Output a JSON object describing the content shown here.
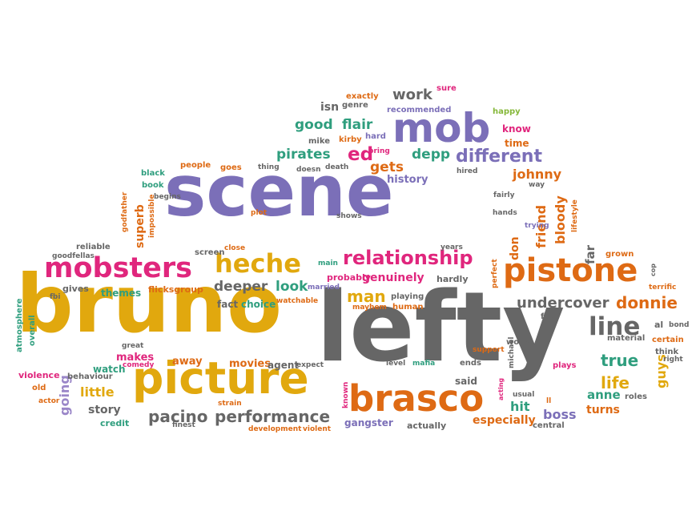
{
  "palette": {
    "purple": "#7b6fb8",
    "yellow": "#e1a80e",
    "pink": "#e0267d",
    "orange": "#de6a14",
    "gray": "#666666",
    "teal": "#2f9e7e",
    "lightgreen": "#86b83a",
    "lavender": "#9a86c8"
  },
  "words": [
    {
      "text": "lefty",
      "color": "gray"
    },
    {
      "text": "bruno",
      "color": "yellow"
    },
    {
      "text": "scene",
      "color": "purple"
    },
    {
      "text": "picture",
      "color": "yellow"
    },
    {
      "text": "brasco",
      "color": "orange"
    },
    {
      "text": "pistone",
      "color": "orange"
    },
    {
      "text": "mob",
      "color": "purple"
    },
    {
      "text": "mobsters",
      "color": "pink"
    },
    {
      "text": "heche",
      "color": "yellow"
    },
    {
      "text": "relationship",
      "color": "pink"
    },
    {
      "text": "line",
      "color": "gray"
    },
    {
      "text": "undercover",
      "color": "gray"
    },
    {
      "text": "donnie",
      "color": "orange"
    },
    {
      "text": "performance",
      "color": "gray"
    },
    {
      "text": "pacino",
      "color": "gray"
    },
    {
      "text": "different",
      "color": "purple"
    },
    {
      "text": "true",
      "color": "teal"
    },
    {
      "text": "life",
      "color": "yellow"
    },
    {
      "text": "work",
      "color": "gray"
    },
    {
      "text": "good",
      "color": "teal"
    },
    {
      "text": "flair",
      "color": "teal"
    },
    {
      "text": "depp",
      "color": "teal"
    },
    {
      "text": "pirates",
      "color": "teal"
    },
    {
      "text": "ed",
      "color": "pink"
    },
    {
      "text": "gets",
      "color": "orange"
    },
    {
      "text": "johnny",
      "color": "orange"
    },
    {
      "text": "friend",
      "color": "orange"
    },
    {
      "text": "bloody",
      "color": "orange"
    },
    {
      "text": "deeper",
      "color": "gray"
    },
    {
      "text": "look",
      "color": "teal"
    },
    {
      "text": "man",
      "color": "yellow"
    },
    {
      "text": "genuinely",
      "color": "pink"
    },
    {
      "text": "going",
      "color": "lavender"
    },
    {
      "text": "little",
      "color": "yellow"
    },
    {
      "text": "boss",
      "color": "purple"
    },
    {
      "text": "hit",
      "color": "teal"
    },
    {
      "text": "guys",
      "color": "yellow"
    },
    {
      "text": "anne",
      "color": "teal"
    },
    {
      "text": "turns",
      "color": "orange"
    },
    {
      "text": "especially",
      "color": "orange"
    },
    {
      "text": "superb",
      "color": "orange"
    },
    {
      "text": "story",
      "color": "gray"
    },
    {
      "text": "makes",
      "color": "pink"
    },
    {
      "text": "watch",
      "color": "teal"
    },
    {
      "text": "away",
      "color": "orange"
    },
    {
      "text": "movies",
      "color": "orange"
    },
    {
      "text": "agent",
      "color": "gray"
    },
    {
      "text": "themes",
      "color": "teal"
    },
    {
      "text": "gives",
      "color": "gray"
    },
    {
      "text": "choice",
      "color": "teal"
    },
    {
      "text": "fact",
      "color": "gray"
    },
    {
      "text": "gangster",
      "color": "purple"
    },
    {
      "text": "actually",
      "color": "gray"
    },
    {
      "text": "far",
      "color": "gray"
    },
    {
      "text": "don",
      "color": "orange"
    },
    {
      "text": "isn",
      "color": "gray"
    },
    {
      "text": "history",
      "color": "purple"
    },
    {
      "text": "know",
      "color": "pink"
    },
    {
      "text": "time",
      "color": "orange"
    },
    {
      "text": "happy",
      "color": "lightgreen"
    },
    {
      "text": "sure",
      "color": "pink"
    },
    {
      "text": "exactly",
      "color": "orange"
    },
    {
      "text": "recommended",
      "color": "purple"
    },
    {
      "text": "genre",
      "color": "gray"
    },
    {
      "text": "mike",
      "color": "gray"
    },
    {
      "text": "kirby",
      "color": "orange"
    },
    {
      "text": "hard",
      "color": "purple"
    },
    {
      "text": "bring",
      "color": "pink"
    },
    {
      "text": "hired",
      "color": "gray"
    },
    {
      "text": "doesn",
      "color": "gray"
    },
    {
      "text": "death",
      "color": "gray"
    },
    {
      "text": "thing",
      "color": "gray"
    },
    {
      "text": "goes",
      "color": "orange"
    },
    {
      "text": "people",
      "color": "orange"
    },
    {
      "text": "black",
      "color": "teal"
    },
    {
      "text": "book",
      "color": "teal"
    },
    {
      "text": "begins",
      "color": "gray"
    },
    {
      "text": "impossible",
      "color": "orange"
    },
    {
      "text": "godfather",
      "color": "orange"
    },
    {
      "text": "reliable",
      "color": "gray"
    },
    {
      "text": "goodfellas",
      "color": "gray"
    },
    {
      "text": "plot",
      "color": "orange"
    },
    {
      "text": "shows",
      "color": "gray"
    },
    {
      "text": "screen",
      "color": "gray"
    },
    {
      "text": "close",
      "color": "orange"
    },
    {
      "text": "main",
      "color": "teal"
    },
    {
      "text": "flicksgroup",
      "color": "orange"
    },
    {
      "text": "probably",
      "color": "pink"
    },
    {
      "text": "hardly",
      "color": "gray"
    },
    {
      "text": "playing",
      "color": "gray"
    },
    {
      "text": "human",
      "color": "orange"
    },
    {
      "text": "mayhem",
      "color": "orange"
    },
    {
      "text": "married",
      "color": "purple"
    },
    {
      "text": "watchable",
      "color": "orange"
    },
    {
      "text": "fbi",
      "color": "gray"
    },
    {
      "text": "atmosphere",
      "color": "teal"
    },
    {
      "text": "overall",
      "color": "teal"
    },
    {
      "text": "violence",
      "color": "pink"
    },
    {
      "text": "old",
      "color": "orange"
    },
    {
      "text": "actor",
      "color": "orange"
    },
    {
      "text": "behaviour",
      "color": "gray"
    },
    {
      "text": "great",
      "color": "gray"
    },
    {
      "text": "comedy",
      "color": "pink"
    },
    {
      "text": "credit",
      "color": "teal"
    },
    {
      "text": "finest",
      "color": "gray"
    },
    {
      "text": "strain",
      "color": "orange"
    },
    {
      "text": "development",
      "color": "orange"
    },
    {
      "text": "violent",
      "color": "orange"
    },
    {
      "text": "expect",
      "color": "gray"
    },
    {
      "text": "level",
      "color": "gray"
    },
    {
      "text": "mafia",
      "color": "teal"
    },
    {
      "text": "known",
      "color": "pink"
    },
    {
      "text": "said",
      "color": "gray"
    },
    {
      "text": "ends",
      "color": "gray"
    },
    {
      "text": "support",
      "color": "orange"
    },
    {
      "text": "michael",
      "color": "gray"
    },
    {
      "text": "acting",
      "color": "pink"
    },
    {
      "text": "usual",
      "color": "gray"
    },
    {
      "text": "ll",
      "color": "orange"
    },
    {
      "text": "central",
      "color": "gray"
    },
    {
      "text": "wood",
      "color": "gray"
    },
    {
      "text": "plays",
      "color": "pink"
    },
    {
      "text": "roles",
      "color": "gray"
    },
    {
      "text": "material",
      "color": "gray"
    },
    {
      "text": "fast",
      "color": "gray"
    },
    {
      "text": "al",
      "color": "gray"
    },
    {
      "text": "bond",
      "color": "gray"
    },
    {
      "text": "certain",
      "color": "orange"
    },
    {
      "text": "think",
      "color": "gray"
    },
    {
      "text": "right",
      "color": "gray"
    },
    {
      "text": "terrific",
      "color": "orange"
    },
    {
      "text": "cop",
      "color": "gray"
    },
    {
      "text": "grown",
      "color": "orange"
    },
    {
      "text": "perfect",
      "color": "orange"
    },
    {
      "text": "years",
      "color": "gray"
    },
    {
      "text": "hands",
      "color": "gray"
    },
    {
      "text": "fairly",
      "color": "gray"
    },
    {
      "text": "way",
      "color": "gray"
    },
    {
      "text": "trying",
      "color": "purple"
    },
    {
      "text": "lifestyle",
      "color": "orange"
    }
  ]
}
